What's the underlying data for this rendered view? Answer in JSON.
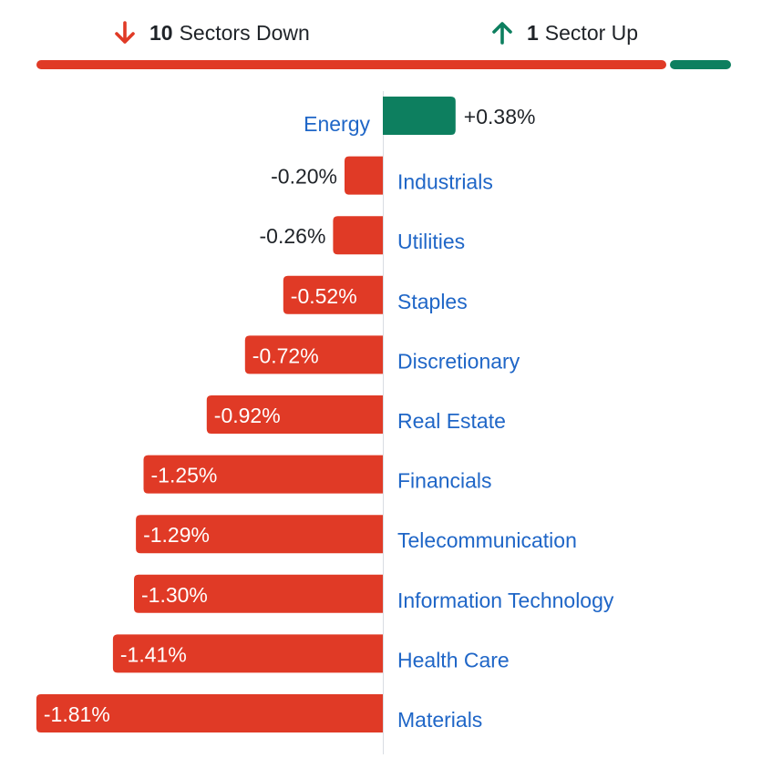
{
  "summary": {
    "down": {
      "count": "10",
      "label": "Sectors Down",
      "icon": "arrow-down-icon"
    },
    "up": {
      "count": "1",
      "label": "Sector Up",
      "icon": "arrow-up-icon"
    },
    "down_fraction": 0.909,
    "up_fraction": 0.091
  },
  "colors": {
    "down": "#e03a26",
    "up": "#0d7f5f",
    "label": "#1f66c7",
    "text": "#1f2328",
    "axis": "#d9dde3"
  },
  "chart_data": {
    "type": "bar",
    "orientation": "horizontal",
    "categories": [
      "Energy",
      "Industrials",
      "Utilities",
      "Staples",
      "Discretionary",
      "Real Estate",
      "Financials",
      "Telecommunication",
      "Information Technology",
      "Health Care",
      "Materials"
    ],
    "values": [
      0.38,
      -0.2,
      -0.26,
      -0.52,
      -0.72,
      -0.92,
      -1.25,
      -1.29,
      -1.3,
      -1.41,
      -1.81
    ],
    "value_labels": [
      "+0.38%",
      "-0.20%",
      "-0.26%",
      "-0.52%",
      "-0.72%",
      "-0.92%",
      "-1.25%",
      "-1.29%",
      "-1.30%",
      "-1.41%",
      "-1.81%"
    ],
    "xlim": [
      -1.81,
      0.38
    ],
    "grid": false,
    "legend": "none"
  }
}
